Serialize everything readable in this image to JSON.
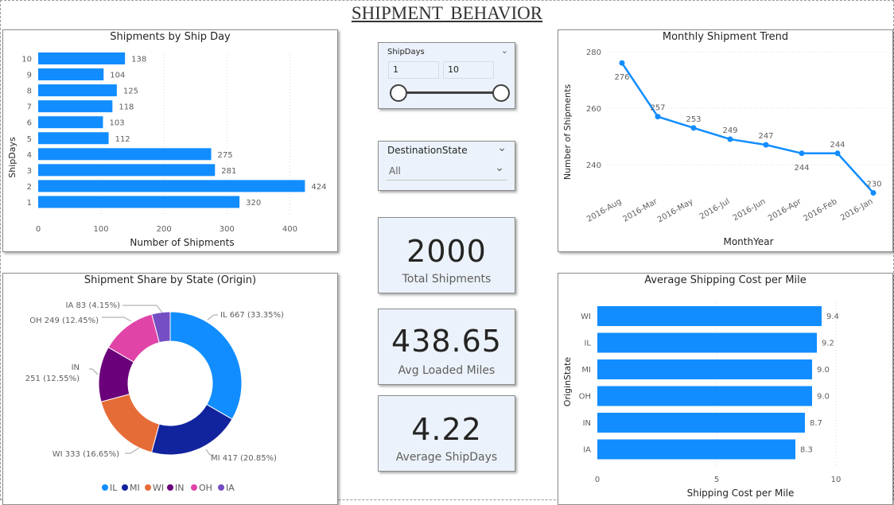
{
  "page": {
    "title": "SHIPMENT BEHAVIOR"
  },
  "ship_day_chart": {
    "title": "Shipments by Ship Day",
    "xlabel": "Number of Shipments",
    "ylabel": "ShipDays",
    "color": "#118dff",
    "xticks": [
      "0",
      "100",
      "200",
      "300",
      "400"
    ]
  },
  "slicer_shipdays": {
    "label": "ShipDays",
    "min_value": "1",
    "max_value": "10"
  },
  "slicer_destination": {
    "label": "DestinationState",
    "selected": "All"
  },
  "kpis": {
    "total_shipments": {
      "value": "2000",
      "label": "Total Shipments"
    },
    "avg_loaded_miles": {
      "value": "438.65",
      "label": "Avg Loaded Miles"
    },
    "avg_shipdays": {
      "value": "4.22",
      "label": "Average ShipDays"
    }
  },
  "trend_chart": {
    "title": "Monthly Shipment Trend",
    "xlabel": "MonthYear",
    "ylabel": "Number of Shipments",
    "color": "#118dff",
    "yticks": [
      "280",
      "260",
      "240"
    ]
  },
  "share_chart": {
    "title": "Shipment Share by State (Origin)",
    "legend": [
      "IL",
      "MI",
      "WI",
      "IN",
      "OH",
      "IA"
    ],
    "labels": {
      "IL": "IL 667 (33.35%)",
      "MI": "MI 417 (20.85%)",
      "WI": "WI 333 (16.65%)",
      "IN1": "IN",
      "IN2": "251 (12.55%)",
      "OH": "OH 249 (12.45%)",
      "IA": "IA 83 (4.15%)"
    },
    "colors": {
      "IL": "#118dff",
      "MI": "#12239e",
      "WI": "#e66c37",
      "IN": "#6b007b",
      "OH": "#e044a7",
      "IA": "#744ec2"
    }
  },
  "cost_chart": {
    "title": "Average Shipping Cost per Mile",
    "xlabel": "Shipping Cost per Mile",
    "ylabel": "OriginState",
    "color": "#118dff",
    "xticks": [
      "0",
      "5",
      "10"
    ]
  },
  "chart_data": [
    {
      "type": "bar",
      "title": "Shipments by Ship Day",
      "orientation": "horizontal",
      "categories": [
        "10",
        "9",
        "8",
        "7",
        "6",
        "5",
        "4",
        "3",
        "2",
        "1"
      ],
      "values": [
        138,
        104,
        125,
        118,
        103,
        112,
        275,
        281,
        424,
        320
      ],
      "xlabel": "Number of Shipments",
      "ylabel": "ShipDays",
      "xlim": [
        0,
        450
      ],
      "grid": true
    },
    {
      "type": "line",
      "title": "Monthly Shipment Trend",
      "x": [
        "2016-Aug",
        "2016-Mar",
        "2016-May",
        "2016-Jul",
        "2016-Jun",
        "2016-Apr",
        "2016-Feb",
        "2016-Jan"
      ],
      "values": [
        276,
        257,
        253,
        249,
        247,
        244,
        244,
        230
      ],
      "xlabel": "MonthYear",
      "ylabel": "Number of Shipments",
      "ylim": [
        230,
        282
      ],
      "grid": true
    },
    {
      "type": "pie",
      "title": "Shipment Share by State (Origin)",
      "donut": true,
      "categories": [
        "IL",
        "MI",
        "WI",
        "IN",
        "OH",
        "IA"
      ],
      "values": [
        667,
        417,
        333,
        251,
        249,
        83
      ],
      "percentages": [
        33.35,
        20.85,
        16.65,
        12.55,
        12.45,
        4.15
      ],
      "legend": "bottom"
    },
    {
      "type": "bar",
      "title": "Average Shipping Cost per Mile",
      "orientation": "horizontal",
      "categories": [
        "WI",
        "IL",
        "MI",
        "OH",
        "IN",
        "IA"
      ],
      "values": [
        9.4,
        9.2,
        9.0,
        9.0,
        8.7,
        8.3
      ],
      "xlabel": "Shipping Cost per Mile",
      "ylabel": "OriginState",
      "xlim": [
        0,
        10
      ],
      "grid": true
    }
  ]
}
